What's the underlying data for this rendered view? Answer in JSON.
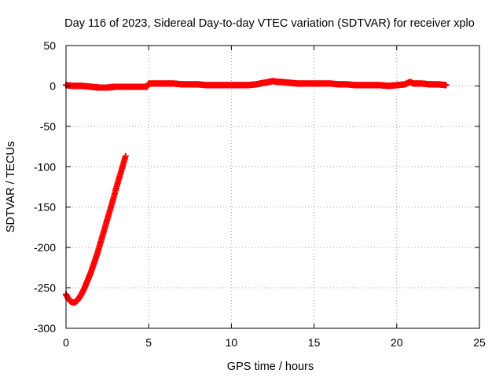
{
  "chart_data": {
    "type": "scatter",
    "title": "Day 116 of 2023, Sidereal Day-to-day VTEC variation (SDTVAR) for receiver xplo",
    "xlabel": "GPS time / hours",
    "ylabel": "SDTVAR / TECUs",
    "xlim": [
      0,
      25
    ],
    "ylim": [
      -300,
      50
    ],
    "xticks": [
      0,
      5,
      10,
      15,
      20,
      25
    ],
    "yticks": [
      50,
      0,
      -50,
      -100,
      -150,
      -200,
      -250,
      -300
    ],
    "xtick_labels": [
      "0",
      "5",
      "10",
      "15",
      "20",
      "25"
    ],
    "ytick_labels": [
      "50",
      "0",
      "-50",
      "-100",
      "-150",
      "-200",
      "-250",
      "-300"
    ],
    "grid": true,
    "legend": "none",
    "marker": "plus",
    "color": "#ff0000",
    "series": [
      {
        "x": [
          0.0,
          0.5,
          1.0,
          1.5,
          2.0,
          2.5,
          3.0,
          3.5,
          4.0,
          4.5,
          4.9,
          5.0,
          5.5,
          6.0,
          6.5,
          7.0,
          7.5,
          8.0,
          8.5,
          9.0,
          9.5,
          10.0,
          10.5,
          11.0,
          11.5,
          12.0,
          12.5,
          12.8,
          13.0,
          13.5,
          14.0,
          14.5,
          15.0,
          15.5,
          16.0,
          16.5,
          17.0,
          17.5,
          18.0,
          18.5,
          19.0,
          19.5,
          20.0,
          20.5,
          20.8,
          21.0,
          21.5,
          22.0,
          22.5,
          23.0
        ],
        "y": [
          1,
          0,
          0,
          -1,
          -2,
          -2,
          -1,
          -1,
          -1,
          -1,
          -1,
          3,
          3,
          3,
          3,
          2,
          2,
          2,
          1,
          1,
          1,
          1,
          1,
          1,
          2,
          4,
          6,
          5,
          5,
          4,
          3,
          3,
          3,
          3,
          3,
          2,
          2,
          1,
          1,
          1,
          1,
          0,
          1,
          2,
          5,
          3,
          3,
          2,
          2,
          1
        ]
      },
      {
        "x": [
          0.0,
          0.1,
          0.2,
          0.3,
          0.4,
          0.5,
          0.6,
          0.7,
          0.8,
          0.9,
          1.0,
          1.1,
          1.2,
          1.3,
          1.4,
          1.5,
          1.6,
          1.7,
          1.8,
          1.9,
          2.0,
          2.1,
          2.2,
          2.3,
          2.4,
          2.5,
          2.6,
          2.7,
          2.8,
          2.9,
          3.0,
          3.1,
          3.2,
          3.3,
          3.4,
          3.5,
          3.6
        ],
        "y": [
          -258,
          -262,
          -265,
          -267,
          -268,
          -268,
          -267,
          -265,
          -262,
          -259,
          -255,
          -251,
          -246,
          -241,
          -236,
          -231,
          -225,
          -219,
          -213,
          -207,
          -200,
          -193,
          -186,
          -179,
          -172,
          -165,
          -158,
          -151,
          -144,
          -137,
          -129,
          -122,
          -115,
          -108,
          -101,
          -94,
          -87
        ]
      }
    ]
  }
}
